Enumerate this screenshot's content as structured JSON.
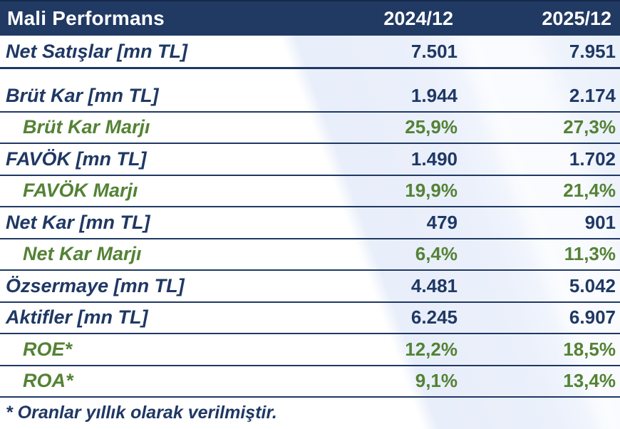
{
  "table": {
    "header": {
      "title": "Mali Performans",
      "col_2024": "2024/12",
      "col_2025": "2025/12"
    },
    "rows": [
      {
        "label": "Net Satışlar [mn TL]",
        "v2024": "7.501",
        "v2025": "7.951",
        "type": "metric",
        "gap_after": true
      },
      {
        "label": "Brüt Kar [mn TL]",
        "v2024": "1.944",
        "v2025": "2.174",
        "type": "metric"
      },
      {
        "label": "Brüt Kar Marjı",
        "v2024": "25,9%",
        "v2025": "27,3%",
        "type": "margin"
      },
      {
        "label": "FAVÖK [mn TL]",
        "v2024": "1.490",
        "v2025": "1.702",
        "type": "metric"
      },
      {
        "label": "FAVÖK Marjı",
        "v2024": "19,9%",
        "v2025": "21,4%",
        "type": "margin"
      },
      {
        "label": "Net Kar [mn TL]",
        "v2024": "479",
        "v2025": "901",
        "type": "metric"
      },
      {
        "label": "Net Kar Marjı",
        "v2024": "6,4%",
        "v2025": "11,3%",
        "type": "margin"
      },
      {
        "label": "Özsermaye [mn TL]",
        "v2024": "4.481",
        "v2025": "5.042",
        "type": "metric"
      },
      {
        "label": "Aktifler [mn TL]",
        "v2024": "6.245",
        "v2025": "6.907",
        "type": "metric"
      },
      {
        "label": "ROE*",
        "v2024": "12,2%",
        "v2025": "18,5%",
        "type": "margin"
      },
      {
        "label": "ROA*",
        "v2024": "9,1%",
        "v2025": "13,4%",
        "type": "margin"
      }
    ],
    "footnote": "* Oranlar yıllık olarak verilmiştir.",
    "colors": {
      "header_bg": "#213a63",
      "navy_text": "#1f3864",
      "green_text": "#548235",
      "band_blue": "#e9eefa"
    }
  },
  "chart_data": {
    "type": "table",
    "title": "Mali Performans",
    "categories": [
      "Net Satışlar [mn TL]",
      "Brüt Kar [mn TL]",
      "Brüt Kar Marjı",
      "FAVÖK [mn TL]",
      "FAVÖK Marjı",
      "Net Kar [mn TL]",
      "Net Kar Marjı",
      "Özsermaye [mn TL]",
      "Aktifler [mn TL]",
      "ROE*",
      "ROA*"
    ],
    "units": [
      "mn TL",
      "mn TL",
      "%",
      "mn TL",
      "%",
      "mn TL",
      "%",
      "mn TL",
      "mn TL",
      "%",
      "%"
    ],
    "series": [
      {
        "name": "2024/12",
        "values": [
          7501,
          1944,
          25.9,
          1490,
          19.9,
          479,
          6.4,
          4481,
          6245,
          12.2,
          9.1
        ]
      },
      {
        "name": "2025/12",
        "values": [
          7951,
          2174,
          27.3,
          1702,
          21.4,
          901,
          11.3,
          5042,
          6907,
          18.5,
          13.4
        ]
      }
    ],
    "annotations": [
      "* Oranlar yıllık olarak verilmiştir."
    ]
  }
}
